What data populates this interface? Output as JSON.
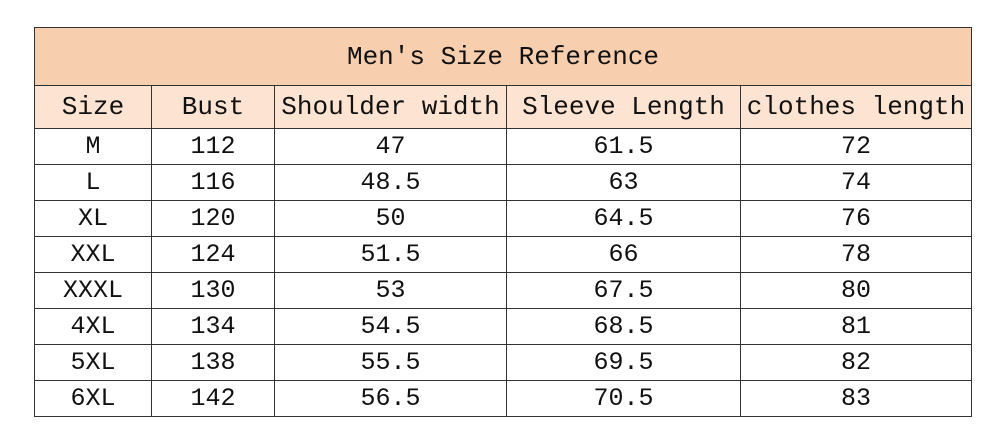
{
  "table": {
    "title": "Men's Size Reference",
    "header": [
      "Size",
      "Bust",
      "Shoulder width",
      "Sleeve Length",
      "clothes length"
    ],
    "rows": [
      [
        "M",
        "112",
        "47",
        "61.5",
        "72"
      ],
      [
        "L",
        "116",
        "48.5",
        "63",
        "74"
      ],
      [
        "XL",
        "120",
        "50",
        "64.5",
        "76"
      ],
      [
        "XXL",
        "124",
        "51.5",
        "66",
        "78"
      ],
      [
        "XXXL",
        "130",
        "53",
        "67.5",
        "80"
      ],
      [
        "4XL",
        "134",
        "54.5",
        "68.5",
        "81"
      ],
      [
        "5XL",
        "138",
        "55.5",
        "69.5",
        "82"
      ],
      [
        "6XL",
        "142",
        "56.5",
        "70.5",
        "83"
      ]
    ]
  }
}
